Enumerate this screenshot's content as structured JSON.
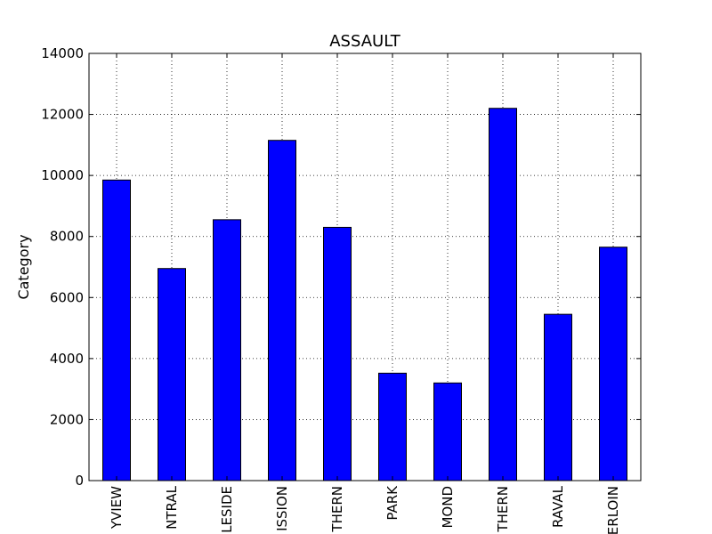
{
  "chart_data": {
    "type": "bar",
    "title": "ASSAULT",
    "xlabel": "",
    "ylabel": "Category",
    "categories": [
      "BAYVIEW",
      "CENTRAL",
      "INGLESIDE",
      "MISSION",
      "NORTHERN",
      "PARK",
      "RICHMOND",
      "SOUTHERN",
      "TARAVAL",
      "TENDERLOIN"
    ],
    "category_labels_visible": [
      "YVIEW",
      "NTRAL",
      "LESIDE",
      "ISSION",
      "THERN",
      "PARK",
      "MOND",
      "THERN",
      "RAVAL",
      "ERLOIN"
    ],
    "values": [
      9850,
      6950,
      8550,
      11150,
      8300,
      3520,
      3200,
      12200,
      5450,
      7650
    ],
    "ylim": [
      0,
      14000
    ],
    "yticks": [
      "0",
      "2000",
      "4000",
      "6000",
      "8000",
      "10000",
      "12000",
      "14000"
    ],
    "grid": true,
    "bar_color": "#0000ff",
    "edge_color": "#000000"
  }
}
